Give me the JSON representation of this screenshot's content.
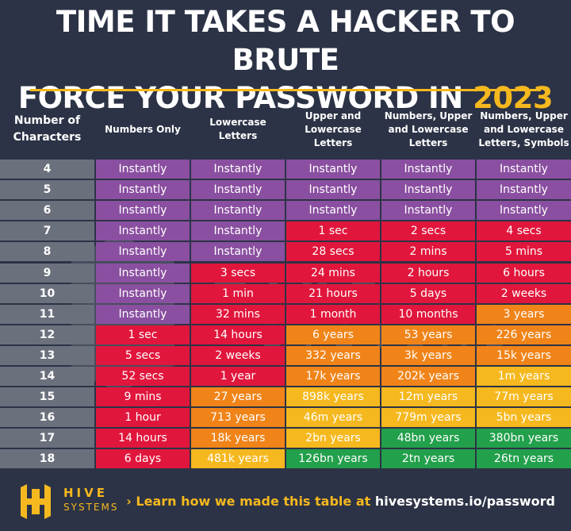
{
  "title": {
    "line1": "TIME IT TAKES A HACKER TO BRUTE",
    "line2_prefix": "FORCE YOUR PASSWORD IN",
    "year": "2023"
  },
  "colors": {
    "background": "#2c3346",
    "accent": "#f5b81e",
    "row_header": "#6b707d",
    "purple": "#8a4fa0",
    "red": "#e1163c",
    "orange": "#f08419",
    "yellow": "#f5b81e",
    "green": "#22a04b"
  },
  "chart_data": {
    "type": "table",
    "title": "TIME IT TAKES A HACKER TO BRUTE FORCE YOUR PASSWORD IN 2023",
    "row_header_label": "Number of Characters",
    "columns": [
      "Numbers Only",
      "Lowercase Letters",
      "Upper and Lowercase Letters",
      "Numbers, Upper and Lowercase Letters",
      "Numbers, Upper and Lowercase Letters, Symbols"
    ],
    "rows": [
      {
        "chars": "4",
        "values": [
          "Instantly",
          "Instantly",
          "Instantly",
          "Instantly",
          "Instantly"
        ],
        "colors": [
          "purple",
          "purple",
          "purple",
          "purple",
          "purple"
        ]
      },
      {
        "chars": "5",
        "values": [
          "Instantly",
          "Instantly",
          "Instantly",
          "Instantly",
          "Instantly"
        ],
        "colors": [
          "purple",
          "purple",
          "purple",
          "purple",
          "purple"
        ]
      },
      {
        "chars": "6",
        "values": [
          "Instantly",
          "Instantly",
          "Instantly",
          "Instantly",
          "Instantly"
        ],
        "colors": [
          "purple",
          "purple",
          "purple",
          "purple",
          "purple"
        ]
      },
      {
        "chars": "7",
        "values": [
          "Instantly",
          "Instantly",
          "1 sec",
          "2 secs",
          "4 secs"
        ],
        "colors": [
          "purple",
          "purple",
          "red",
          "red",
          "red"
        ]
      },
      {
        "chars": "8",
        "values": [
          "Instantly",
          "Instantly",
          "28 secs",
          "2 mins",
          "5 mins"
        ],
        "colors": [
          "purple",
          "purple",
          "red",
          "red",
          "red"
        ]
      },
      {
        "chars": "9",
        "values": [
          "Instantly",
          "3 secs",
          "24 mins",
          "2 hours",
          "6 hours"
        ],
        "colors": [
          "purple",
          "red",
          "red",
          "red",
          "red"
        ]
      },
      {
        "chars": "10",
        "values": [
          "Instantly",
          "1 min",
          "21 hours",
          "5 days",
          "2 weeks"
        ],
        "colors": [
          "purple",
          "red",
          "red",
          "red",
          "red"
        ]
      },
      {
        "chars": "11",
        "values": [
          "Instantly",
          "32 mins",
          "1 month",
          "10 months",
          "3 years"
        ],
        "colors": [
          "purple",
          "red",
          "red",
          "red",
          "orange"
        ]
      },
      {
        "chars": "12",
        "values": [
          "1 sec",
          "14 hours",
          "6 years",
          "53 years",
          "226 years"
        ],
        "colors": [
          "red",
          "red",
          "orange",
          "orange",
          "orange"
        ]
      },
      {
        "chars": "13",
        "values": [
          "5 secs",
          "2 weeks",
          "332 years",
          "3k years",
          "15k years"
        ],
        "colors": [
          "red",
          "red",
          "orange",
          "orange",
          "orange"
        ]
      },
      {
        "chars": "14",
        "values": [
          "52 secs",
          "1 year",
          "17k years",
          "202k years",
          "1m years"
        ],
        "colors": [
          "red",
          "red",
          "orange",
          "orange",
          "yellow"
        ]
      },
      {
        "chars": "15",
        "values": [
          "9 mins",
          "27 years",
          "898k years",
          "12m years",
          "77m years"
        ],
        "colors": [
          "red",
          "orange",
          "yellow",
          "yellow",
          "yellow"
        ]
      },
      {
        "chars": "16",
        "values": [
          "1 hour",
          "713 years",
          "46m years",
          "779m years",
          "5bn years"
        ],
        "colors": [
          "red",
          "orange",
          "yellow",
          "yellow",
          "yellow"
        ]
      },
      {
        "chars": "17",
        "values": [
          "14 hours",
          "18k years",
          "2bn years",
          "48bn years",
          "380bn years"
        ],
        "colors": [
          "red",
          "orange",
          "yellow",
          "green",
          "green"
        ]
      },
      {
        "chars": "18",
        "values": [
          "6 days",
          "481k years",
          "126bn years",
          "2tn years",
          "26tn years"
        ],
        "colors": [
          "red",
          "yellow",
          "green",
          "green",
          "green"
        ]
      }
    ]
  },
  "watermark": {
    "brand": "HIVE",
    "sub": "SYSTEMS"
  },
  "footer": {
    "logo_line1": "HIVE",
    "logo_line2": "SYSTEMS",
    "link_prefix": "› Learn how we made this table at",
    "link_url": "hivesystems.io/password"
  }
}
